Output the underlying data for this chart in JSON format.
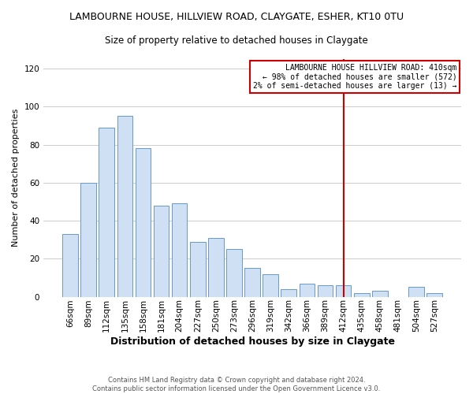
{
  "title": "LAMBOURNE HOUSE, HILLVIEW ROAD, CLAYGATE, ESHER, KT10 0TU",
  "subtitle": "Size of property relative to detached houses in Claygate",
  "xlabel": "Distribution of detached houses by size in Claygate",
  "ylabel": "Number of detached properties",
  "bar_labels": [
    "66sqm",
    "89sqm",
    "112sqm",
    "135sqm",
    "158sqm",
    "181sqm",
    "204sqm",
    "227sqm",
    "250sqm",
    "273sqm",
    "296sqm",
    "319sqm",
    "342sqm",
    "366sqm",
    "389sqm",
    "412sqm",
    "435sqm",
    "458sqm",
    "481sqm",
    "504sqm",
    "527sqm"
  ],
  "bar_values": [
    33,
    60,
    89,
    95,
    78,
    48,
    49,
    29,
    31,
    25,
    15,
    12,
    4,
    7,
    6,
    6,
    2,
    3,
    0,
    5,
    2
  ],
  "bar_color": "#cfe0f5",
  "bar_edge_color": "#6699cc",
  "vline_index": 15,
  "vline_color": "#cc0000",
  "ylim": [
    0,
    125
  ],
  "yticks": [
    0,
    20,
    40,
    60,
    80,
    100,
    120
  ],
  "annotation_lines": [
    "LAMBOURNE HOUSE HILLVIEW ROAD: 410sqm",
    "← 98% of detached houses are smaller (572)",
    "2% of semi-detached houses are larger (13) →"
  ],
  "annotation_box_facecolor": "#ffffff",
  "annotation_box_edgecolor": "#cc0000",
  "footer_line1": "Contains HM Land Registry data © Crown copyright and database right 2024.",
  "footer_line2": "Contains public sector information licensed under the Open Government Licence v3.0.",
  "background_color": "#ffffff",
  "grid_color": "#cccccc",
  "title_fontsize": 9,
  "subtitle_fontsize": 8.5,
  "xlabel_fontsize": 9,
  "ylabel_fontsize": 8,
  "tick_fontsize": 7.5,
  "footer_fontsize": 6,
  "annot_fontsize": 7
}
